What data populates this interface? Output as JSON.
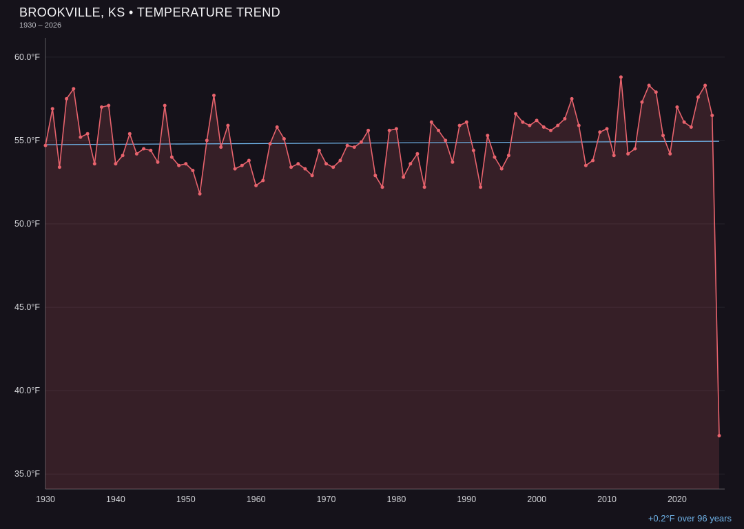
{
  "header": {
    "title": "BROOKVILLE, KS • TEMPERATURE TREND",
    "subtitle": "1930 – 2026"
  },
  "footer": {
    "trend_note": "+0.2°F over 96 years"
  },
  "colors": {
    "background": "#15121a",
    "line": "#e8636d",
    "point": "#e8636d",
    "area": "rgba(232,99,109,0.16)",
    "trend": "#6fb3e8",
    "tick_label": "#d4d5d9",
    "title": "#f4f4f6",
    "footer_accent": "#6fb3e8"
  },
  "chart_data": {
    "type": "line",
    "title": "BROOKVILLE, KS • TEMPERATURE TREND",
    "subtitle": "1930 – 2026",
    "xlabel": "",
    "ylabel": "",
    "grid": "horizontal",
    "legend": "none",
    "marker": "circle",
    "x": [
      1930,
      1931,
      1932,
      1933,
      1934,
      1935,
      1936,
      1937,
      1938,
      1939,
      1940,
      1941,
      1942,
      1943,
      1944,
      1945,
      1946,
      1947,
      1948,
      1949,
      1950,
      1951,
      1952,
      1953,
      1954,
      1955,
      1956,
      1957,
      1958,
      1959,
      1960,
      1961,
      1962,
      1963,
      1964,
      1965,
      1966,
      1967,
      1968,
      1969,
      1970,
      1971,
      1972,
      1973,
      1974,
      1975,
      1976,
      1977,
      1978,
      1979,
      1980,
      1981,
      1982,
      1983,
      1984,
      1985,
      1986,
      1987,
      1988,
      1989,
      1990,
      1991,
      1992,
      1993,
      1994,
      1995,
      1996,
      1997,
      1998,
      1999,
      2000,
      2001,
      2002,
      2003,
      2004,
      2005,
      2006,
      2007,
      2008,
      2009,
      2010,
      2011,
      2012,
      2013,
      2014,
      2015,
      2016,
      2017,
      2018,
      2019,
      2020,
      2021,
      2022,
      2023,
      2024,
      2025,
      2026
    ],
    "series": [
      {
        "name": "Temperature (°F)",
        "values": [
          54.7,
          56.9,
          53.4,
          57.5,
          58.1,
          55.2,
          55.4,
          53.6,
          57.0,
          57.1,
          53.6,
          54.1,
          55.4,
          54.2,
          54.5,
          54.4,
          53.7,
          57.1,
          54.0,
          53.5,
          53.6,
          53.2,
          51.8,
          55.0,
          57.7,
          54.6,
          55.9,
          53.3,
          53.5,
          53.8,
          52.3,
          52.6,
          54.8,
          55.8,
          55.1,
          53.4,
          53.6,
          53.3,
          52.9,
          54.4,
          53.6,
          53.4,
          53.8,
          54.7,
          54.6,
          54.9,
          55.6,
          52.9,
          52.2,
          55.6,
          55.7,
          52.8,
          53.6,
          54.2,
          52.2,
          56.1,
          55.6,
          55.0,
          53.7,
          55.9,
          56.1,
          54.4,
          52.2,
          55.3,
          54.0,
          53.3,
          54.1,
          56.6,
          56.1,
          55.9,
          56.2,
          55.8,
          55.6,
          55.9,
          56.3,
          57.5,
          55.9,
          53.5,
          53.8,
          55.5,
          55.7,
          54.1,
          58.8,
          54.2,
          54.5,
          57.3,
          58.3,
          57.9,
          55.3,
          54.2,
          57.0,
          56.1,
          55.8,
          57.6,
          58.3,
          56.5,
          37.3
        ]
      }
    ],
    "trend": {
      "start": 54.75,
      "end": 54.95,
      "label": "+0.2°F over 96 years"
    },
    "ylim": [
      34.1,
      61.15
    ],
    "yticks": [
      35,
      40,
      45,
      50,
      55,
      60
    ],
    "ytick_labels": [
      "35.0°F",
      "40.0°F",
      "45.0°F",
      "50.0°F",
      "55.0°F",
      "60.0°F"
    ],
    "xticks": [
      1930,
      1940,
      1950,
      1960,
      1970,
      1980,
      1990,
      2000,
      2010,
      2020
    ]
  }
}
